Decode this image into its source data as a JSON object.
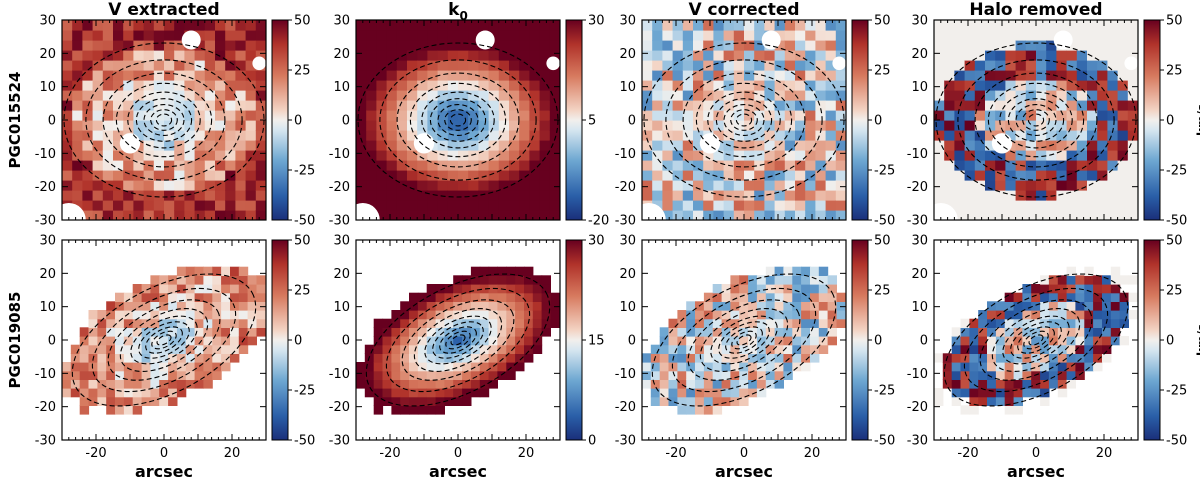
{
  "chart_data": {
    "type": "heatmap",
    "description_columns": [
      "V extracted",
      "k₀",
      "V corrected",
      "Halo removed"
    ],
    "xlabel": "arcsec",
    "xlim": [
      -30,
      30
    ],
    "ylim": [
      -30,
      30
    ],
    "x_ticks": [
      -20,
      0,
      20
    ],
    "y_ticks": [
      30,
      20,
      10,
      0,
      -10,
      -20,
      -30
    ],
    "colorbar_unit": "km/s",
    "rows": [
      {
        "name": "PGC015524",
        "panels": [
          {
            "title": "V extracted",
            "field": "v_extracted",
            "cbar_ticks": [
              50,
              25,
              0,
              -25,
              -50
            ],
            "clim": [
              -50,
              50
            ]
          },
          {
            "title_main": "k",
            "title_sub": "0",
            "field": "k0",
            "cbar_ticks": [
              30,
              5,
              -20
            ],
            "clim": [
              -20,
              30
            ]
          },
          {
            "title": "V corrected",
            "field": "v_corrected",
            "cbar_ticks": [
              50,
              25,
              0,
              -25,
              -50
            ],
            "clim": [
              -50,
              50
            ]
          },
          {
            "title": "Halo removed",
            "field": "halo_removed",
            "cbar_ticks": [
              50,
              25,
              0,
              -25,
              -50
            ],
            "clim": [
              -50,
              50
            ],
            "unit": "km/s"
          }
        ]
      },
      {
        "name": "PGC019085",
        "panels": [
          {
            "field": "v_extracted",
            "cbar_ticks": [
              50,
              25,
              0,
              -25,
              -50
            ],
            "clim": [
              -50,
              50
            ]
          },
          {
            "field": "k0",
            "cbar_ticks": [
              30,
              15,
              0
            ],
            "clim": [
              0,
              30
            ]
          },
          {
            "field": "v_corrected",
            "cbar_ticks": [
              50,
              25,
              0,
              -25,
              -50
            ],
            "clim": [
              -50,
              50
            ]
          },
          {
            "field": "halo_removed",
            "cbar_ticks": [
              50,
              25,
              0,
              -25,
              -50
            ],
            "clim": [
              -50,
              50
            ],
            "unit": "km/s"
          }
        ]
      }
    ]
  }
}
